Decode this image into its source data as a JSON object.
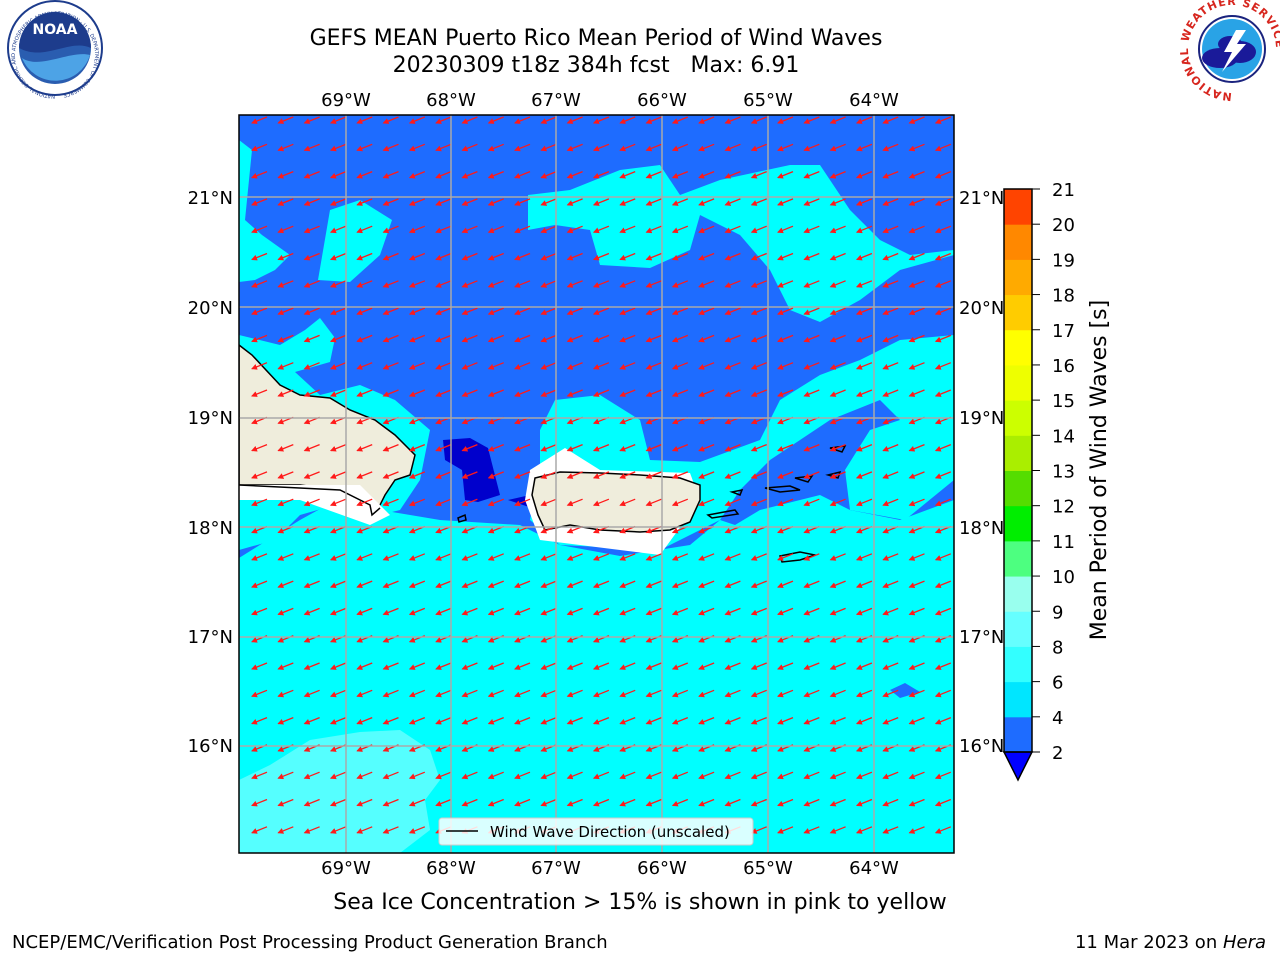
{
  "title": {
    "line1": "GEFS MEAN Puerto Rico Mean Period of Wind Waves",
    "line2": "20230309 t18z 384h fcst   Max: 6.91"
  },
  "map": {
    "lon_labels": [
      "69°W",
      "68°W",
      "67°W",
      "66°W",
      "65°W",
      "64°W"
    ],
    "lat_labels": [
      "21°N",
      "20°N",
      "19°N",
      "18°N",
      "17°N",
      "16°N"
    ],
    "legend_label": "Wind Wave Direction (unscaled)",
    "arrow_direction": "toward west-southwest",
    "colors": {
      "ocean_deep": "#1e6cff",
      "ocean_light": "#00ffff",
      "land": "#efeddc",
      "arrow": "#ff1a1a",
      "dark_blue": "#0000cc"
    }
  },
  "colorbar": {
    "label": "Mean Period of Wind Waves [s]",
    "ticks": [
      "2",
      "4",
      "6",
      "8",
      "9",
      "10",
      "11",
      "12",
      "13",
      "14",
      "15",
      "16",
      "17",
      "18",
      "19",
      "20",
      "21"
    ],
    "colors": [
      "#1e6cff",
      "#00e6ff",
      "#33ffff",
      "#66ffff",
      "#99ffee",
      "#4dff80",
      "#00ee00",
      "#55dd00",
      "#aaee00",
      "#ccff00",
      "#eeff00",
      "#ffff00",
      "#ffcc00",
      "#ffaa00",
      "#ff8800",
      "#ff4400",
      "#ff0000"
    ],
    "extend_color": "#0000ff"
  },
  "subtitle": "Sea Ice Concentration > 15% is shown in pink to yellow",
  "footer": {
    "left": "NCEP/EMC/Verification Post Processing Product Generation Branch",
    "right_date": "11 Mar 2023 on ",
    "right_host": "Hera"
  },
  "logos": {
    "noaa_text": "NOAA",
    "noaa_ring": "NATIONAL OCEANIC AND ATMOSPHERIC ADMINISTRATION · U.S. DEPARTMENT OF COMMERCE",
    "nws_ring": "NATIONAL WEATHER SERVICE"
  }
}
